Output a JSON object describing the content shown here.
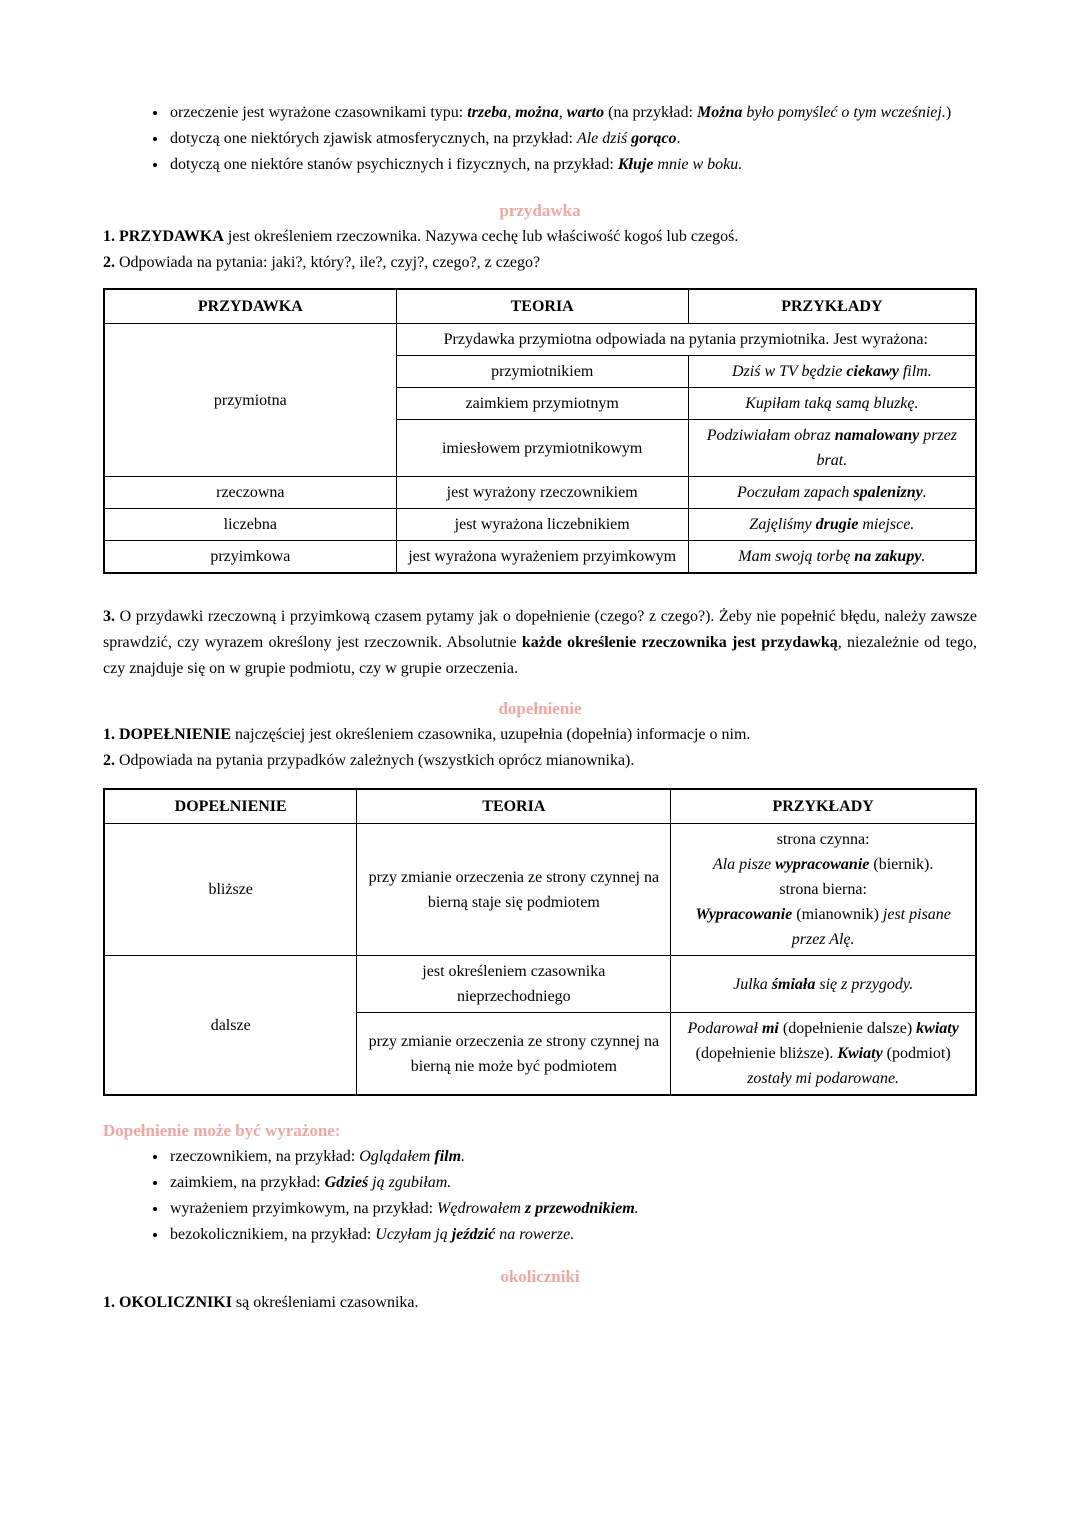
{
  "colors": {
    "heading_pink": "#f2a6a0",
    "text": "#000000",
    "background": "#ffffff",
    "table_border": "#000000"
  },
  "intro": {
    "bullets": [
      {
        "runs": [
          {
            "t": "orzeczenie jest wyrażone czasownikami typu: "
          },
          {
            "t": "trzeba",
            "s": "bi"
          },
          {
            "t": ", "
          },
          {
            "t": "można",
            "s": "bi"
          },
          {
            "t": ", "
          },
          {
            "t": "warto",
            "s": "bi"
          },
          {
            "t": " (na przykład: "
          },
          {
            "t": "Można ",
            "s": "bi"
          },
          {
            "t": "było pomyśleć o tym wcześniej.",
            "s": "i"
          },
          {
            "t": ")"
          }
        ]
      },
      {
        "runs": [
          {
            "t": "dotyczą one niektórych zjawisk atmosferycznych, na przykład: "
          },
          {
            "t": "Ale dziś ",
            "s": "i"
          },
          {
            "t": "gorąco",
            "s": "bi"
          },
          {
            "t": "."
          }
        ]
      },
      {
        "runs": [
          {
            "t": "dotyczą one niektóre stanów psychicznych i fizycznych, na przykład: "
          },
          {
            "t": "Kłuje",
            "s": "bi"
          },
          {
            "t": " mnie w boku.",
            "s": "i"
          }
        ]
      }
    ]
  },
  "przydawka": {
    "heading": "przydawka",
    "point1": [
      {
        "t": "1. PRZYDAWKA",
        "s": "b"
      },
      {
        "t": " jest określeniem rzeczownika. Nazywa cechę lub właściwość kogoś lub czegoś."
      }
    ],
    "point2": [
      {
        "t": "2.",
        "s": "b"
      },
      {
        "t": " Odpowiada na pytania: jaki?, który?, ile?, czyj?, czego?, z czego?"
      }
    ],
    "table": {
      "headers": [
        "PRZYDAWKA",
        "TEORIA",
        "PRZYKŁADY"
      ],
      "group_label": "przymiotna",
      "group_intro": "Przydawka przymiotna odpowiada na pytania przymiotnika. Jest wyrażona:",
      "group_rows": [
        {
          "teoria": "przymiotnikiem",
          "przyklad": [
            {
              "t": "Dziś w TV będzie ",
              "s": "i"
            },
            {
              "t": "ciekawy",
              "s": "bi"
            },
            {
              "t": " film.",
              "s": "i"
            }
          ]
        },
        {
          "teoria": "zaimkiem przymiotnym",
          "przyklad": [
            {
              "t": "Kupiłam taką samą bluzkę.",
              "s": "i"
            }
          ]
        },
        {
          "teoria": "imiesłowem przymiotnikowym",
          "przyklad": [
            {
              "t": "Podziwiałam obraz ",
              "s": "i"
            },
            {
              "t": "namalowany",
              "s": "bi"
            },
            {
              "t": " przez brat.",
              "s": "i"
            }
          ]
        }
      ],
      "rows": [
        {
          "label": "rzeczowna",
          "teoria": "jest wyrażony rzeczownikiem",
          "przyklad": [
            {
              "t": "Poczułam zapach ",
              "s": "i"
            },
            {
              "t": "spalenizny",
              "s": "bi"
            },
            {
              "t": ".",
              "s": "i"
            }
          ]
        },
        {
          "label": "liczebna",
          "teoria": "jest wyrażona liczebnikiem",
          "przyklad": [
            {
              "t": "Zajęliśmy ",
              "s": "i"
            },
            {
              "t": "drugie",
              "s": "bi"
            },
            {
              "t": " miejsce.",
              "s": "i"
            }
          ]
        },
        {
          "label": "przyimkowa",
          "teoria": "jest wyrażona wyrażeniem przyimkowym",
          "przyklad": [
            {
              "t": "Mam swoją torbę ",
              "s": "i"
            },
            {
              "t": "na zakupy",
              "s": "bi"
            },
            {
              "t": ".",
              "s": "i"
            }
          ]
        }
      ]
    },
    "point3": [
      {
        "t": "3.",
        "s": "b"
      },
      {
        "t": " O przydawki rzeczowną i przyimkową czasem pytamy jak o dopełnienie (czego? z czego?). Żeby nie popełnić błędu, należy zawsze sprawdzić, czy wyrazem określony jest rzeczownik. Absolutnie "
      },
      {
        "t": "każde określenie rzeczownika jest przydawką",
        "s": "b"
      },
      {
        "t": ", niezależnie od tego, czy znajduje się on w grupie podmiotu, czy w grupie orzeczenia."
      }
    ]
  },
  "dopelnienie": {
    "heading": "dopełnienie",
    "point1": [
      {
        "t": "1. DOPEŁNIENIE",
        "s": "b"
      },
      {
        "t": " najczęściej jest określeniem czasownika, uzupełnia (dopełnia) informacje o nim."
      }
    ],
    "point2": [
      {
        "t": "2.",
        "s": "b"
      },
      {
        "t": " Odpowiada na pytania przypadków zależnych (wszystkich oprócz mianownika)."
      }
    ],
    "table": {
      "headers": [
        "DOPEŁNIENIE",
        "TEORIA",
        "PRZYKŁADY"
      ],
      "blizsze": {
        "label": "bliższe",
        "teoria": "przy zmianie orzeczenia ze strony czynnej na bierną staje się podmiotem",
        "przyklad": [
          {
            "t": "strona czynna:"
          },
          {
            "br": true
          },
          {
            "t": "Ala pisze ",
            "s": "i"
          },
          {
            "t": "wypracowanie",
            "s": "bi"
          },
          {
            "t": " (biernik)."
          },
          {
            "br": true
          },
          {
            "t": "strona bierna:"
          },
          {
            "br": true
          },
          {
            "t": "Wypracowanie",
            "s": "bi"
          },
          {
            "t": " (mianownik) "
          },
          {
            "t": "jest pisane przez Alę.",
            "s": "i"
          }
        ]
      },
      "dalsze_label": "dalsze",
      "dalsze_rows": [
        {
          "teoria": "jest określeniem czasownika nieprzechodniego",
          "przyklad": [
            {
              "t": "Julka ",
              "s": "i"
            },
            {
              "t": "śmiała",
              "s": "bi"
            },
            {
              "t": " się z przygody.",
              "s": "i"
            }
          ]
        },
        {
          "teoria": "przy zmianie orzeczenia ze strony czynnej na bierną nie może być podmiotem",
          "przyklad": [
            {
              "t": "Podarował ",
              "s": "i"
            },
            {
              "t": "mi",
              "s": "bi"
            },
            {
              "t": " (dopełnienie dalsze) "
            },
            {
              "t": "kwiaty",
              "s": "bi"
            },
            {
              "t": " (dopełnienie bliższe). "
            },
            {
              "t": "Kwiaty",
              "s": "bi"
            },
            {
              "t": " (podmiot) "
            },
            {
              "t": "zostały mi podarowane.",
              "s": "i"
            }
          ]
        }
      ]
    },
    "wyrazone": {
      "heading": "Dopełnienie może być wyrażone:",
      "bullets": [
        {
          "runs": [
            {
              "t": "rzeczownikiem, na przykład: "
            },
            {
              "t": "Oglądałem ",
              "s": "i"
            },
            {
              "t": "film",
              "s": "bi"
            },
            {
              "t": ".",
              "s": "i"
            }
          ]
        },
        {
          "runs": [
            {
              "t": "zaimkiem, na przykład: "
            },
            {
              "t": "Gdzieś",
              "s": "bi"
            },
            {
              "t": " ją zgubiłam.",
              "s": "i"
            }
          ]
        },
        {
          "runs": [
            {
              "t": "wyrażeniem przyimkowym, na przykład: "
            },
            {
              "t": "Wędrowałem ",
              "s": "i"
            },
            {
              "t": "z przewodnikiem",
              "s": "bi"
            },
            {
              "t": ".",
              "s": "i"
            }
          ]
        },
        {
          "runs": [
            {
              "t": "bezokolicznikiem, na przykład: "
            },
            {
              "t": "Uczyłam ją ",
              "s": "i"
            },
            {
              "t": "jeździć",
              "s": "bi"
            },
            {
              "t": " na rowerze.",
              "s": "i"
            }
          ]
        }
      ]
    }
  },
  "okoliczniki": {
    "heading": "okoliczniki",
    "point1": [
      {
        "t": "1. OKOLICZNIKI",
        "s": "b"
      },
      {
        "t": " są określeniami czasownika."
      }
    ]
  }
}
